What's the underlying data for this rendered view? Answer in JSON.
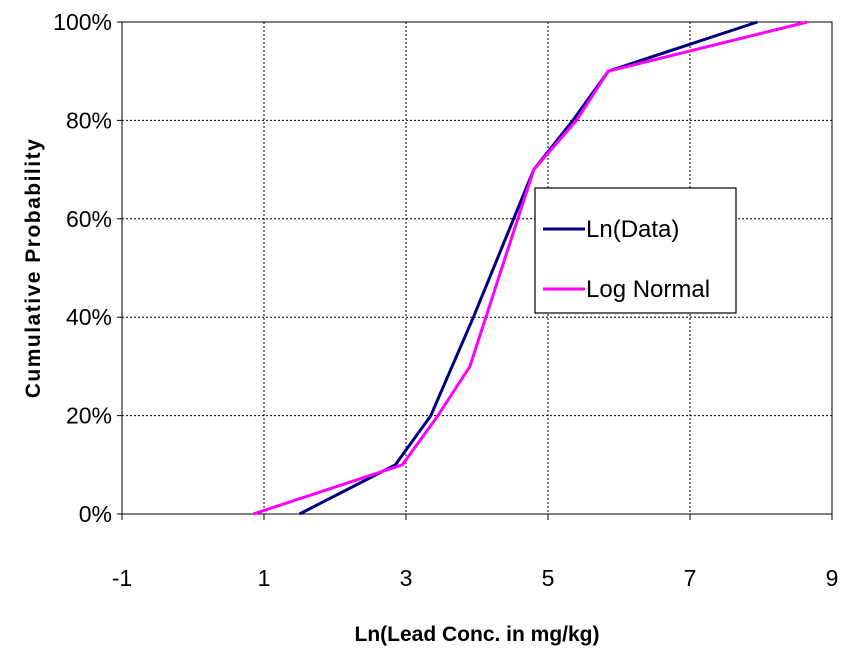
{
  "chart_data": {
    "type": "line",
    "xlabel": "Ln(Lead Conc. in mg/kg)",
    "ylabel": "Cumulative Probability",
    "xlim": [
      -1,
      9
    ],
    "ylim": [
      0,
      1
    ],
    "x_ticks": [
      "-1",
      "1",
      "3",
      "5",
      "7",
      "9"
    ],
    "y_ticks": [
      "0%",
      "20%",
      "40%",
      "60%",
      "80%",
      "100%"
    ],
    "grid": true,
    "legend": "center-right",
    "series": [
      {
        "name": "Ln(Data)",
        "color": "#00007f",
        "x": [
          1.5,
          2.85,
          3.35,
          3.95,
          4.8,
          5.35,
          5.85,
          7.95
        ],
        "y": [
          0.0,
          0.1,
          0.2,
          0.4,
          0.7,
          0.8,
          0.9,
          1.0
        ]
      },
      {
        "name": "Log Normal",
        "color": "#ff00ff",
        "x": [
          0.85,
          2.95,
          3.45,
          3.9,
          4.8,
          5.4,
          5.85,
          8.65
        ],
        "y": [
          0.0,
          0.1,
          0.2,
          0.3,
          0.7,
          0.8,
          0.9,
          1.0
        ]
      }
    ]
  }
}
